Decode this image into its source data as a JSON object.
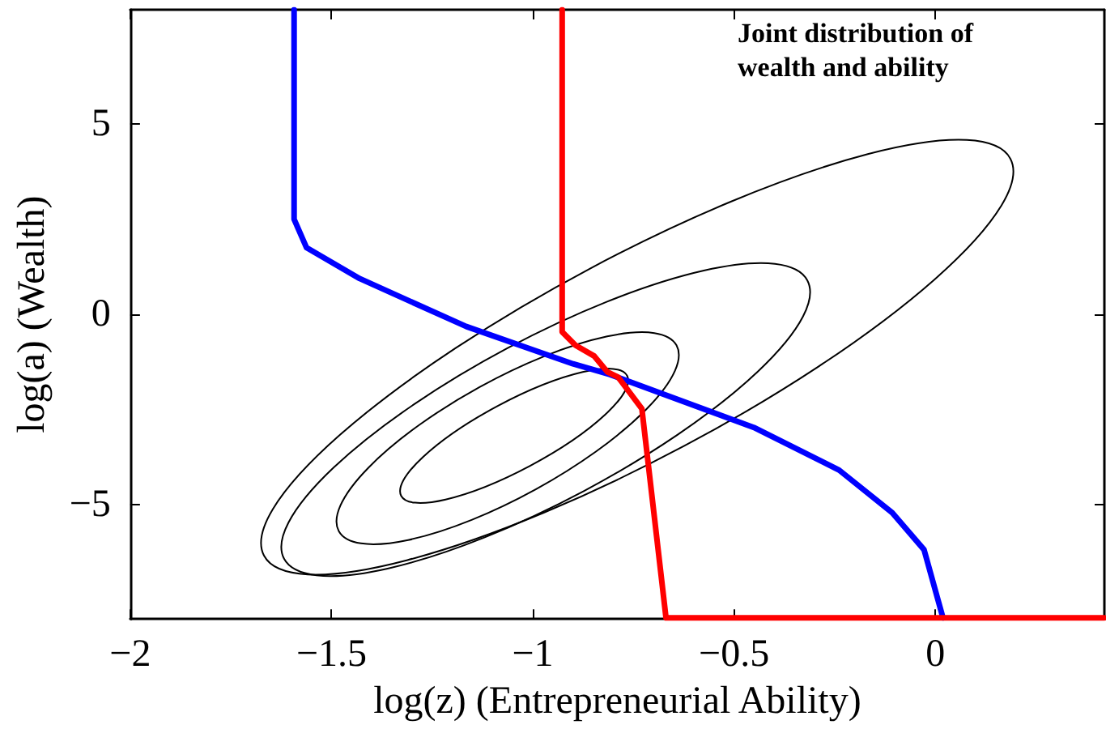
{
  "chart_data": {
    "type": "line",
    "xlabel": "log(z) (Entrepreneurial Ability)",
    "ylabel": "log(a) (Wealth)",
    "annotations": [
      "Joint distribution of\nwealth and ability"
    ],
    "xlim": [
      -2,
      0.42
    ],
    "ylim": [
      -8,
      8
    ],
    "xticks": [
      -2,
      -1.5,
      -1,
      -0.5,
      0
    ],
    "yticks": [
      -5,
      0,
      5
    ],
    "grid": false,
    "marker": "none",
    "line_style": "solid",
    "series": [
      {
        "color": "#0000ff",
        "x": [
          -1.593,
          -1.593,
          -1.562,
          -1.43,
          -1.165,
          -0.9,
          -0.808,
          -0.451,
          -0.239,
          -0.107,
          -0.028,
          0.019
        ],
        "values": [
          8,
          2.5,
          1.75,
          0.94,
          -0.32,
          -1.3,
          -1.58,
          -2.97,
          -4.09,
          -5.21,
          -6.18,
          -7.97
        ]
      },
      {
        "color": "#ff0000",
        "x": [
          -0.927,
          -0.927,
          -0.894,
          -0.848,
          -0.815,
          -0.788,
          -0.729,
          -0.669,
          0.42
        ],
        "values": [
          8,
          -0.46,
          -0.81,
          -1.09,
          -1.51,
          -1.65,
          -2.48,
          -7.97,
          -7.97
        ]
      }
    ]
  }
}
